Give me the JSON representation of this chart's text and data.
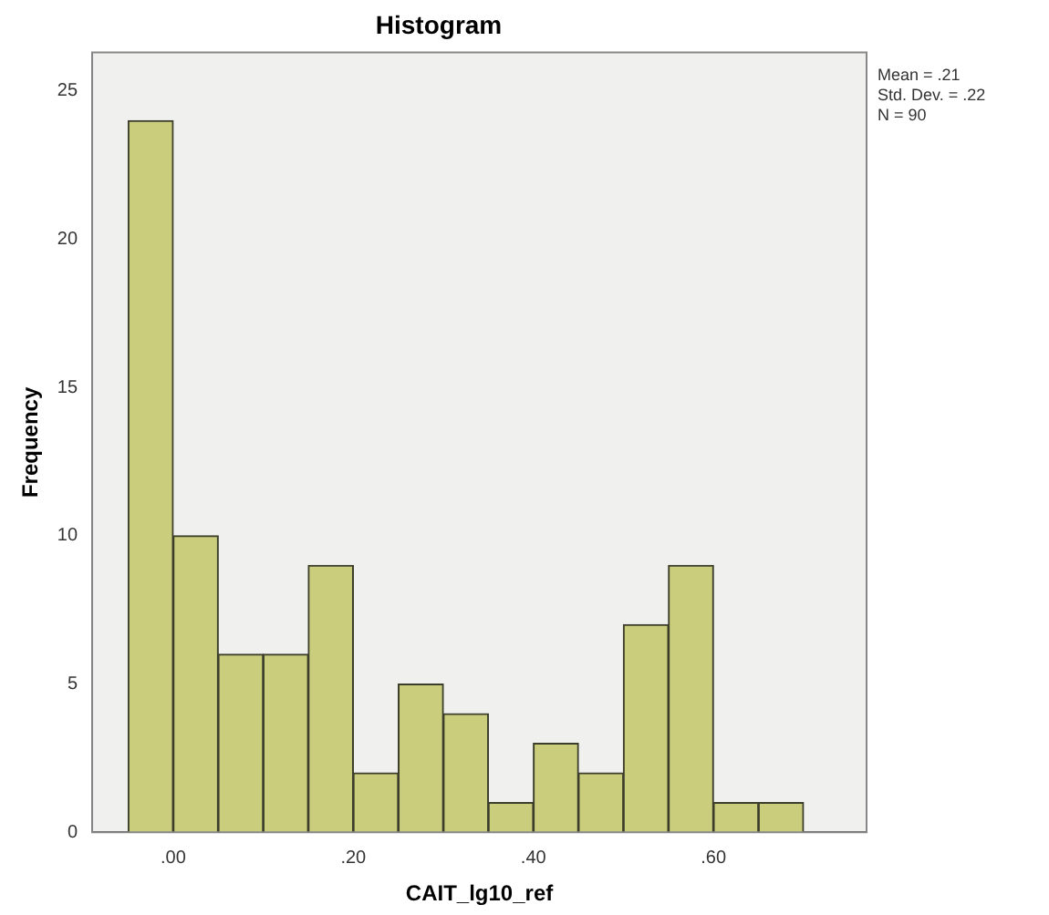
{
  "chart_data": {
    "type": "histogram",
    "title": "Histogram",
    "xlabel": "CAIT_lg10_ref",
    "ylabel": "Frequency",
    "bins": [
      -0.05,
      0,
      0.05,
      0.1,
      0.15,
      0.2,
      0.25,
      0.3,
      0.35,
      0.4,
      0.45,
      0.5,
      0.55,
      0.6,
      0.65,
      0.7
    ],
    "values": [
      24,
      10,
      6,
      6,
      9,
      2,
      5,
      4,
      1,
      3,
      2,
      7,
      9,
      1,
      1
    ],
    "color": "#c9cd7c",
    "xlim": [
      -0.09,
      0.77
    ],
    "xticks": [
      {
        "value": 0,
        "label": ".00"
      },
      {
        "value": 0.2,
        "label": ".20"
      },
      {
        "value": 0.4,
        "label": ".40"
      },
      {
        "value": 0.6,
        "label": ".60"
      }
    ],
    "ylim": [
      0,
      26.3
    ],
    "yticks": [
      0,
      5,
      10,
      15,
      20,
      25
    ],
    "grid": false,
    "legend": false,
    "annotations": [
      "Mean = .21",
      "Std. Dev. = .22",
      "N = 90"
    ]
  }
}
